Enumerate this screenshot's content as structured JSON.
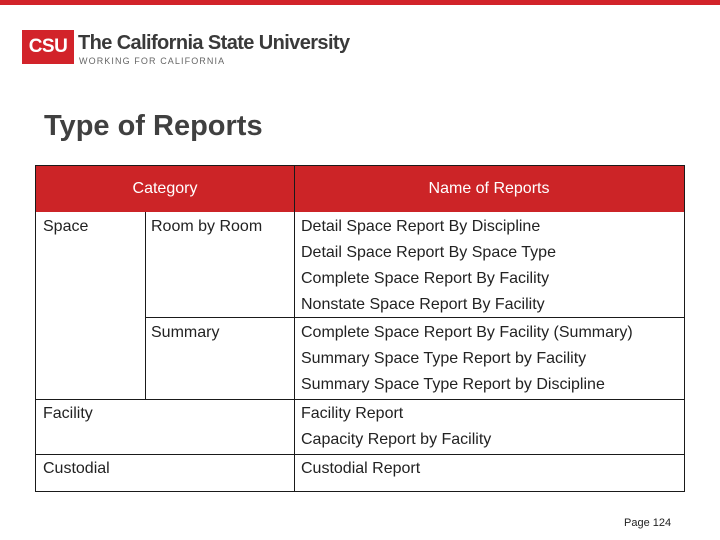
{
  "logo": {
    "abbr": "CSU",
    "title": "The California State University",
    "tagline": "WORKING FOR CALIFORNIA"
  },
  "page_title": "Type of Reports",
  "table": {
    "header": {
      "category": "Category",
      "reports": "Name of Reports"
    },
    "groups": [
      {
        "category": "Space",
        "subgroups": [
          {
            "subcategory": "Room by Room",
            "reports": [
              "Detail Space Report By Discipline",
              "Detail Space Report By Space Type",
              "Complete Space Report By Facility",
              "Nonstate Space Report By Facility"
            ]
          },
          {
            "subcategory": "Summary",
            "reports": [
              "Complete Space Report By Facility (Summary)",
              "Summary Space Type Report by Facility",
              "Summary Space Type Report by Discipline"
            ]
          }
        ]
      },
      {
        "category": "Facility",
        "reports": [
          "Facility Report",
          "Capacity Report by Facility"
        ]
      },
      {
        "category": "Custodial",
        "reports": [
          "Custodial Report"
        ]
      }
    ]
  },
  "page_number": "Page 124",
  "colors": {
    "accent": "#d2232a",
    "header_bg": "#cc2427",
    "text": "#222222",
    "title": "#404040"
  }
}
